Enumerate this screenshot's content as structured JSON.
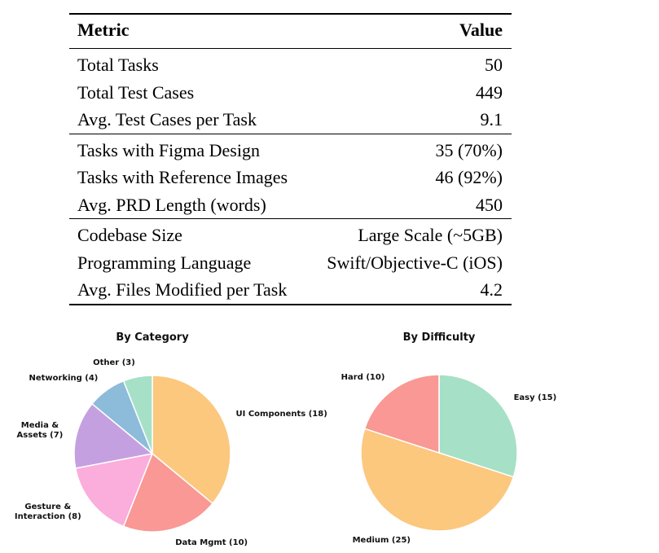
{
  "table": {
    "headers": {
      "metric": "Metric",
      "value": "Value"
    },
    "sections": [
      {
        "rows": [
          {
            "metric": "Total Tasks",
            "value": "50"
          },
          {
            "metric": "Total Test Cases",
            "value": "449"
          },
          {
            "metric": "Avg. Test Cases per Task",
            "value": "9.1"
          }
        ]
      },
      {
        "rows": [
          {
            "metric": "Tasks with Figma Design",
            "value": "35 (70%)"
          },
          {
            "metric": "Tasks with Reference Images",
            "value": "46 (92%)"
          },
          {
            "metric": "Avg. PRD Length (words)",
            "value": "450"
          }
        ]
      },
      {
        "rows": [
          {
            "metric": "Codebase Size",
            "value": "Large Scale (~5GB)"
          },
          {
            "metric": "Programming Language",
            "value": "Swift/Objective-C (iOS)"
          },
          {
            "metric": "Avg. Files Modified per Task",
            "value": "4.2"
          }
        ]
      }
    ]
  },
  "chart_data": [
    {
      "type": "pie",
      "title": "By Category",
      "categories": [
        "UI Components",
        "Data Mgmt",
        "Gesture & Interaction",
        "Media & Assets",
        "Networking",
        "Other"
      ],
      "values": [
        18,
        10,
        8,
        7,
        4,
        3
      ],
      "total": 50,
      "labels": [
        "UI Components (18)",
        "Data Mgmt (10)",
        "Gesture &\nInteraction (8)",
        "Media &\nAssets (7)",
        "Networking (4)",
        "Other (3)"
      ],
      "colors": [
        "#FBC87E",
        "#F99894",
        "#FBADDC",
        "#C5A0E0",
        "#8DBBDA",
        "#A6E0C7"
      ],
      "start_angle_deg": 90,
      "clockwise": true,
      "legend": "none",
      "edge_color": "#ffffff"
    },
    {
      "type": "pie",
      "title": "By Difficulty",
      "categories": [
        "Easy",
        "Medium",
        "Hard"
      ],
      "values": [
        15,
        25,
        10
      ],
      "total": 50,
      "labels": [
        "Easy (15)",
        "Medium (25)",
        "Hard (10)"
      ],
      "colors": [
        "#A6E0C7",
        "#FBC87E",
        "#F99894"
      ],
      "start_angle_deg": 90,
      "clockwise": true,
      "legend": "none",
      "edge_color": "#ffffff"
    }
  ]
}
